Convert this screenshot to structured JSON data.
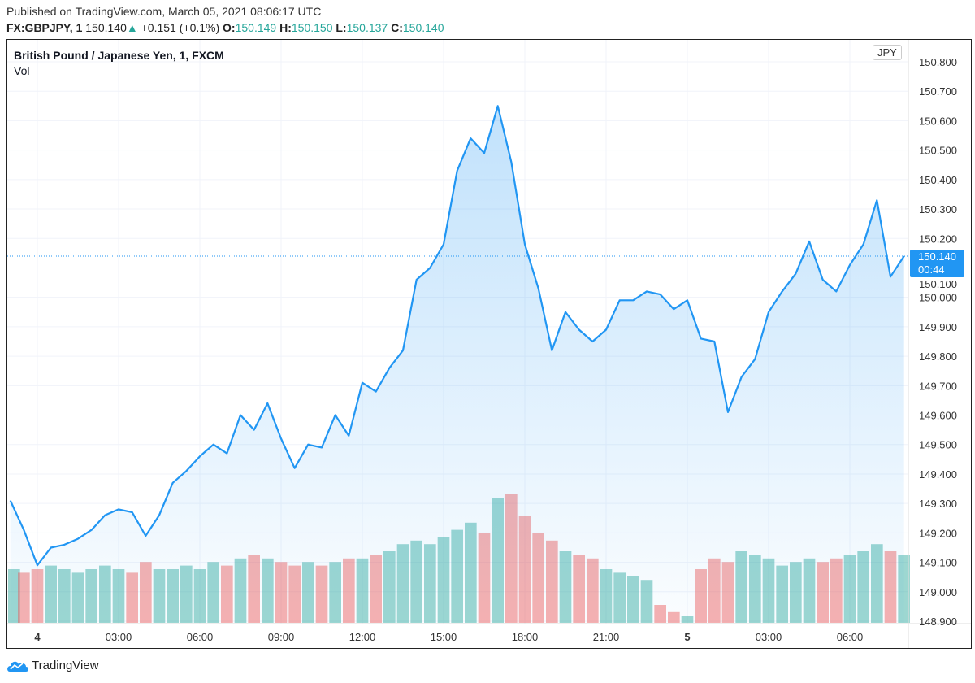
{
  "header": {
    "published": "Published on TradingView.com, March 05, 2021 08:06:17 UTC",
    "symbol": "FX:GBPJPY, 1",
    "last": "150.140",
    "change": "+0.151 (+0.1%)",
    "o_label": "O:",
    "o": "150.149",
    "h_label": "H:",
    "h": "150.150",
    "l_label": "L:",
    "l": "150.137",
    "c_label": "C:",
    "c": "150.140"
  },
  "legend": {
    "title": "British Pound / Japanese Yen, 1, FXCM",
    "vol": "Vol"
  },
  "currency": "JPY",
  "last_price_label": {
    "price": "150.140",
    "countdown": "00:44"
  },
  "brand": "TradingView",
  "colors": {
    "line": "#2196f3",
    "up": "#26a69a",
    "down": "#ef5350",
    "accent": "#2196f3"
  },
  "chart_data": {
    "type": "area",
    "series": [
      {
        "values": [
          149.31,
          149.21,
          149.09,
          149.15,
          149.16,
          149.18,
          149.21,
          149.26,
          149.28,
          149.27,
          149.19,
          149.26,
          149.37,
          149.41,
          149.46,
          149.5,
          149.47,
          149.6,
          149.55,
          149.64,
          149.52,
          149.42,
          149.5,
          149.49,
          149.6,
          149.53,
          149.71,
          149.68,
          149.76,
          149.82,
          150.06,
          150.1,
          150.18,
          150.43,
          150.54,
          150.49,
          150.65,
          150.46,
          150.18,
          150.03,
          149.82,
          149.95,
          149.89,
          149.85,
          149.89,
          149.99,
          149.99,
          150.02,
          150.01,
          149.96,
          149.99,
          149.86,
          149.85,
          149.61,
          149.73,
          149.79,
          149.95,
          150.02,
          150.08,
          150.19,
          150.06,
          150.02,
          150.11,
          150.18,
          150.33,
          150.07,
          150.14
        ]
      }
    ],
    "volume_relative": [
      30,
      28,
      30,
      32,
      30,
      28,
      30,
      32,
      30,
      28,
      34,
      30,
      30,
      32,
      30,
      34,
      32,
      36,
      38,
      36,
      34,
      32,
      34,
      32,
      34,
      36,
      36,
      38,
      40,
      44,
      46,
      44,
      48,
      52,
      56,
      50,
      70,
      72,
      60,
      50,
      46,
      40,
      38,
      36,
      30,
      28,
      26,
      24,
      10,
      6,
      4,
      30,
      36,
      34,
      40,
      38,
      36,
      32,
      34,
      36,
      34,
      36,
      38,
      40,
      44,
      40,
      38
    ],
    "x_start": "2021-03-03 23:00",
    "interval_minutes": 30,
    "x_ticks": [
      "4",
      "03:00",
      "06:00",
      "09:00",
      "12:00",
      "15:00",
      "18:00",
      "21:00",
      "5",
      "03:00",
      "06:00"
    ],
    "y_ticks": [
      "150.800",
      "150.700",
      "150.600",
      "150.500",
      "150.400",
      "150.300",
      "150.200",
      "150.100",
      "150.000",
      "149.900",
      "149.800",
      "149.700",
      "149.600",
      "149.500",
      "149.400",
      "149.300",
      "149.200",
      "149.100",
      "149.000",
      "148.900"
    ],
    "ylim": [
      148.9,
      150.8
    ],
    "last_value": 150.14,
    "grid": true
  }
}
